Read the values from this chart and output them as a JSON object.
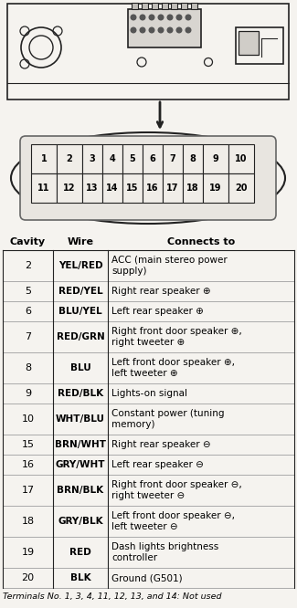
{
  "bg_color": "#f5f3ef",
  "table_header": [
    "Cavity",
    "Wire",
    "Connects to"
  ],
  "rows": [
    [
      "2",
      "YEL/RED",
      "ACC (main stereo power\nsupply)"
    ],
    [
      "5",
      "RED/YEL",
      "Right rear speaker ⊕"
    ],
    [
      "6",
      "BLU/YEL",
      "Left rear speaker ⊕"
    ],
    [
      "7",
      "RED/GRN",
      "Right front door speaker ⊕,\nright tweeter ⊕"
    ],
    [
      "8",
      "BLU",
      "Left front door speaker ⊕,\nleft tweeter ⊕"
    ],
    [
      "9",
      "RED/BLK",
      "Lights-on signal"
    ],
    [
      "10",
      "WHT/BLU",
      "Constant power (tuning\nmemory)"
    ],
    [
      "15",
      "BRN/WHT",
      "Right rear speaker ⊖"
    ],
    [
      "16",
      "GRY/WHT",
      "Left rear speaker ⊖"
    ],
    [
      "17",
      "BRN/BLK",
      "Right front door speaker ⊖,\nright tweeter ⊖"
    ],
    [
      "18",
      "GRY/BLK",
      "Left front door speaker ⊖,\nleft tweeter ⊖"
    ],
    [
      "19",
      "RED",
      "Dash lights brightness\ncontroller"
    ],
    [
      "20",
      "BLK",
      "Ground (G501)"
    ]
  ],
  "footer": "Terminals No. 1, 3, 4, 11, 12, 13, and 14: Not used",
  "connector_top_row": [
    "1",
    "2",
    "3",
    "4",
    "5",
    "6",
    "7",
    "8",
    "9",
    "10"
  ],
  "connector_bot_row": [
    "11",
    "12",
    "13",
    "14",
    "15",
    "16",
    "17",
    "18",
    "19",
    "20"
  ]
}
